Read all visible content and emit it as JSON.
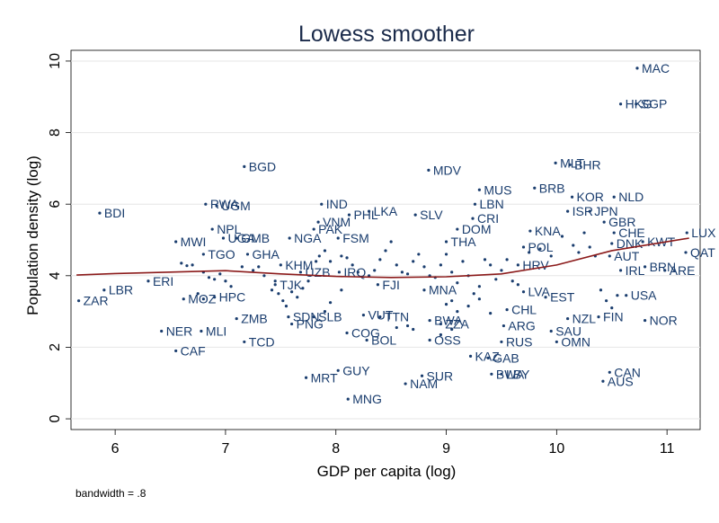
{
  "chart_data": {
    "type": "scatter",
    "title": "Lowess smoother",
    "xlabel": "GDP per capita (log)",
    "ylabel": "Population density (log)",
    "note": "bandwidth = .8",
    "xlim": [
      5.6,
      11.3
    ],
    "ylim": [
      -0.3,
      10.3
    ],
    "xticks": [
      "6",
      "7",
      "8",
      "9",
      "10",
      "11"
    ],
    "yticks": [
      "0",
      "2",
      "4",
      "6",
      "8",
      "10"
    ],
    "grid": true,
    "point_color": "#1a3d6e",
    "line_color": "#8b1a1a",
    "points": [
      {
        "label": "MAC",
        "x": 10.73,
        "y": 9.8
      },
      {
        "label": "HKG",
        "x": 10.58,
        "y": 8.8
      },
      {
        "label": "SGP",
        "x": 10.72,
        "y": 8.8
      },
      {
        "label": "BGD",
        "x": 7.17,
        "y": 7.05
      },
      {
        "label": "MDV",
        "x": 8.84,
        "y": 6.95
      },
      {
        "label": "MLT",
        "x": 9.99,
        "y": 7.15
      },
      {
        "label": "BHR",
        "x": 10.12,
        "y": 7.1
      },
      {
        "label": "MUS",
        "x": 9.3,
        "y": 6.4
      },
      {
        "label": "BRB",
        "x": 9.8,
        "y": 6.45
      },
      {
        "label": "KOR",
        "x": 10.14,
        "y": 6.2
      },
      {
        "label": "NLD",
        "x": 10.52,
        "y": 6.2
      },
      {
        "label": "BDI",
        "x": 5.86,
        "y": 5.75
      },
      {
        "label": "RWA",
        "x": 6.82,
        "y": 6.0
      },
      {
        "label": "UGM",
        "x": 6.92,
        "y": 5.95
      },
      {
        "label": "IND",
        "x": 7.87,
        "y": 6.0
      },
      {
        "label": "LBN",
        "x": 9.26,
        "y": 6.0
      },
      {
        "label": "SLV",
        "x": 8.72,
        "y": 5.7
      },
      {
        "label": "LKA",
        "x": 8.3,
        "y": 5.8
      },
      {
        "label": "ISR",
        "x": 10.1,
        "y": 5.8
      },
      {
        "label": "JPN",
        "x": 10.3,
        "y": 5.8
      },
      {
        "label": "NPL",
        "x": 6.88,
        "y": 5.3
      },
      {
        "label": "PHL",
        "x": 8.12,
        "y": 5.7
      },
      {
        "label": "VNM",
        "x": 7.84,
        "y": 5.5
      },
      {
        "label": "CRI",
        "x": 9.24,
        "y": 5.6
      },
      {
        "label": "DOM",
        "x": 9.1,
        "y": 5.3
      },
      {
        "label": "PAK",
        "x": 7.8,
        "y": 5.3
      },
      {
        "label": "MWI",
        "x": 6.55,
        "y": 4.95
      },
      {
        "label": "UGA",
        "x": 6.98,
        "y": 5.05
      },
      {
        "label": "GMB",
        "x": 7.1,
        "y": 5.05
      },
      {
        "label": "NGA",
        "x": 7.58,
        "y": 5.05
      },
      {
        "label": "FSM",
        "x": 8.02,
        "y": 5.05
      },
      {
        "label": "THA",
        "x": 9.0,
        "y": 4.95
      },
      {
        "label": "KNA",
        "x": 9.76,
        "y": 5.25
      },
      {
        "label": "CHE",
        "x": 10.52,
        "y": 5.2
      },
      {
        "label": "GBR",
        "x": 10.43,
        "y": 5.5
      },
      {
        "label": "LUX",
        "x": 11.18,
        "y": 5.2
      },
      {
        "label": "KWT",
        "x": 10.78,
        "y": 4.95
      },
      {
        "label": "QAT",
        "x": 11.17,
        "y": 4.65
      },
      {
        "label": "TGO",
        "x": 6.8,
        "y": 4.6
      },
      {
        "label": "GHA",
        "x": 7.2,
        "y": 4.6
      },
      {
        "label": "KHM",
        "x": 7.5,
        "y": 4.3
      },
      {
        "label": "AUT",
        "x": 10.48,
        "y": 4.55
      },
      {
        "label": "DNK",
        "x": 10.5,
        "y": 4.9
      },
      {
        "label": "POL",
        "x": 9.7,
        "y": 4.8
      },
      {
        "label": "HRV",
        "x": 9.65,
        "y": 4.3
      },
      {
        "label": "BRN",
        "x": 10.8,
        "y": 4.25
      },
      {
        "label": "IRL",
        "x": 10.58,
        "y": 4.15
      },
      {
        "label": "ARE",
        "x": 10.98,
        "y": 4.15
      },
      {
        "label": "ERI",
        "x": 6.3,
        "y": 3.85
      },
      {
        "label": "LBR",
        "x": 5.9,
        "y": 3.6
      },
      {
        "label": "ZAR",
        "x": 5.67,
        "y": 3.3
      },
      {
        "label": "MOZ",
        "x": 6.62,
        "y": 3.35
      },
      {
        "label": "HPC",
        "x": 6.9,
        "y": 3.4
      },
      {
        "label": "TJK",
        "x": 7.45,
        "y": 3.75
      },
      {
        "label": "UZB",
        "x": 7.68,
        "y": 4.1
      },
      {
        "label": "IRQ",
        "x": 8.03,
        "y": 4.1
      },
      {
        "label": "FJI",
        "x": 8.38,
        "y": 3.75
      },
      {
        "label": "MNA",
        "x": 8.8,
        "y": 3.6
      },
      {
        "label": "LVA",
        "x": 9.7,
        "y": 3.55
      },
      {
        "label": "EST",
        "x": 9.9,
        "y": 3.4
      },
      {
        "label": "USA",
        "x": 10.63,
        "y": 3.45
      },
      {
        "label": "ZMB",
        "x": 7.1,
        "y": 2.8
      },
      {
        "label": "SDN",
        "x": 7.57,
        "y": 2.85
      },
      {
        "label": "SLB",
        "x": 7.8,
        "y": 2.85
      },
      {
        "label": "PNG",
        "x": 7.6,
        "y": 2.65
      },
      {
        "label": "VUT",
        "x": 8.25,
        "y": 2.9
      },
      {
        "label": "TTN",
        "x": 8.4,
        "y": 2.85
      },
      {
        "label": "BWA",
        "x": 8.85,
        "y": 2.75
      },
      {
        "label": "ZZA",
        "x": 8.95,
        "y": 2.65
      },
      {
        "label": "ARG",
        "x": 9.52,
        "y": 2.6
      },
      {
        "label": "CHL",
        "x": 9.55,
        "y": 3.05
      },
      {
        "label": "NZL",
        "x": 10.1,
        "y": 2.8
      },
      {
        "label": "FIN",
        "x": 10.38,
        "y": 2.85
      },
      {
        "label": "NOR",
        "x": 10.8,
        "y": 2.75
      },
      {
        "label": "NER",
        "x": 6.42,
        "y": 2.45
      },
      {
        "label": "MLI",
        "x": 6.78,
        "y": 2.45
      },
      {
        "label": "CAF",
        "x": 6.55,
        "y": 1.9
      },
      {
        "label": "TCD",
        "x": 7.17,
        "y": 2.15
      },
      {
        "label": "COG",
        "x": 8.1,
        "y": 2.4
      },
      {
        "label": "BOL",
        "x": 8.28,
        "y": 2.2
      },
      {
        "label": "OSS",
        "x": 8.85,
        "y": 2.2
      },
      {
        "label": "SAU",
        "x": 9.95,
        "y": 2.45
      },
      {
        "label": "RUS",
        "x": 9.5,
        "y": 2.15
      },
      {
        "label": "OMN",
        "x": 10.0,
        "y": 2.15
      },
      {
        "label": "KAZ",
        "x": 9.22,
        "y": 1.75
      },
      {
        "label": "GAB",
        "x": 9.38,
        "y": 1.7
      },
      {
        "label": "GUY",
        "x": 8.02,
        "y": 1.35
      },
      {
        "label": "MRT",
        "x": 7.73,
        "y": 1.15
      },
      {
        "label": "SUR",
        "x": 8.78,
        "y": 1.2
      },
      {
        "label": "NAM",
        "x": 8.63,
        "y": 0.98
      },
      {
        "label": "BWA",
        "x": 9.41,
        "y": 1.25
      },
      {
        "label": "LBY",
        "x": 9.5,
        "y": 1.25
      },
      {
        "label": "CAN",
        "x": 10.48,
        "y": 1.3
      },
      {
        "label": "AUS",
        "x": 10.42,
        "y": 1.05
      },
      {
        "label": "MNG",
        "x": 8.11,
        "y": 0.55
      }
    ],
    "extra_points": [
      [
        6.6,
        4.35
      ],
      [
        6.65,
        4.28
      ],
      [
        6.7,
        4.3
      ],
      [
        6.8,
        4.1
      ],
      [
        6.85,
        3.95
      ],
      [
        6.9,
        3.9
      ],
      [
        6.95,
        4.05
      ],
      [
        7.0,
        3.85
      ],
      [
        7.05,
        3.7
      ],
      [
        7.15,
        4.25
      ],
      [
        7.25,
        4.15
      ],
      [
        7.3,
        4.25
      ],
      [
        7.35,
        4.0
      ],
      [
        7.42,
        3.6
      ],
      [
        7.48,
        3.5
      ],
      [
        7.52,
        3.3
      ],
      [
        7.55,
        3.15
      ],
      [
        7.6,
        3.55
      ],
      [
        7.65,
        3.4
      ],
      [
        7.7,
        3.65
      ],
      [
        7.75,
        3.85
      ],
      [
        7.82,
        4.4
      ],
      [
        7.85,
        4.55
      ],
      [
        7.9,
        4.7
      ],
      [
        7.95,
        4.4
      ],
      [
        8.05,
        4.55
      ],
      [
        8.1,
        4.5
      ],
      [
        8.15,
        4.3
      ],
      [
        8.2,
        4.1
      ],
      [
        8.3,
        4.0
      ],
      [
        8.35,
        4.15
      ],
      [
        8.4,
        4.45
      ],
      [
        8.45,
        4.7
      ],
      [
        8.5,
        4.95
      ],
      [
        8.55,
        4.3
      ],
      [
        8.6,
        4.1
      ],
      [
        8.65,
        4.05
      ],
      [
        8.7,
        4.4
      ],
      [
        8.75,
        4.6
      ],
      [
        8.8,
        4.25
      ],
      [
        8.85,
        4.0
      ],
      [
        8.9,
        3.95
      ],
      [
        8.95,
        4.3
      ],
      [
        9.0,
        4.6
      ],
      [
        9.05,
        4.1
      ],
      [
        9.1,
        3.8
      ],
      [
        9.15,
        4.4
      ],
      [
        9.2,
        4.0
      ],
      [
        9.25,
        3.5
      ],
      [
        9.3,
        3.7
      ],
      [
        9.35,
        4.45
      ],
      [
        9.4,
        4.3
      ],
      [
        9.45,
        3.9
      ],
      [
        9.5,
        4.15
      ],
      [
        9.55,
        4.45
      ],
      [
        9.6,
        3.85
      ],
      [
        9.65,
        3.75
      ],
      [
        9.75,
        4.65
      ],
      [
        9.85,
        4.75
      ],
      [
        9.95,
        4.55
      ],
      [
        10.05,
        5.1
      ],
      [
        10.15,
        4.85
      ],
      [
        10.2,
        4.65
      ],
      [
        10.25,
        5.2
      ],
      [
        10.3,
        4.8
      ],
      [
        10.35,
        4.55
      ],
      [
        10.4,
        3.6
      ],
      [
        10.45,
        3.3
      ],
      [
        10.5,
        3.1
      ],
      [
        10.55,
        3.45
      ],
      [
        9.0,
        3.2
      ],
      [
        9.05,
        3.3
      ],
      [
        9.1,
        3.0
      ],
      [
        9.2,
        3.15
      ],
      [
        9.3,
        3.35
      ],
      [
        9.4,
        2.95
      ],
      [
        8.55,
        2.55
      ],
      [
        8.65,
        2.6
      ],
      [
        8.7,
        2.5
      ],
      [
        8.95,
        2.35
      ],
      [
        9.05,
        2.5
      ],
      [
        7.9,
        3.0
      ],
      [
        7.95,
        3.25
      ],
      [
        8.05,
        3.6
      ],
      [
        6.75,
        3.5
      ],
      [
        6.8,
        3.35
      ],
      [
        7.45,
        3.85
      ]
    ],
    "lowess": [
      [
        5.65,
        4.02
      ],
      [
        6.0,
        4.06
      ],
      [
        6.5,
        4.1
      ],
      [
        7.0,
        4.14
      ],
      [
        7.5,
        4.05
      ],
      [
        8.0,
        3.98
      ],
      [
        8.5,
        3.95
      ],
      [
        9.0,
        3.97
      ],
      [
        9.5,
        4.05
      ],
      [
        10.0,
        4.3
      ],
      [
        10.5,
        4.7
      ],
      [
        11.2,
        5.05
      ]
    ]
  }
}
